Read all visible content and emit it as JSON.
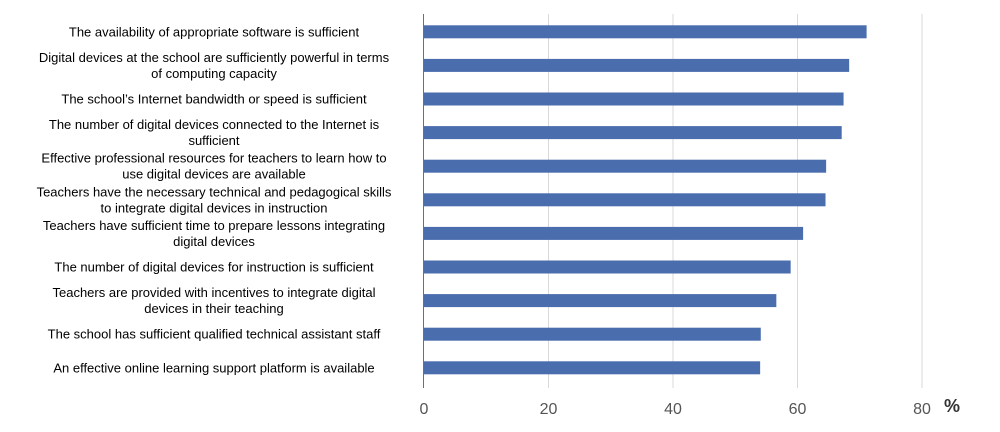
{
  "chart_data": {
    "type": "bar",
    "orientation": "horizontal",
    "categories": [
      [
        "The availability of appropriate software is sufficient"
      ],
      [
        "Digital devices at the school are sufficiently powerful in terms",
        "of computing capacity"
      ],
      [
        "The school’s Internet bandwidth or speed is sufficient"
      ],
      [
        "The number of digital devices connected to the Internet is",
        "sufficient"
      ],
      [
        "Effective professional resources for teachers to learn how to",
        "use digital devices are available"
      ],
      [
        "Teachers have the necessary technical and pedagogical skills",
        "to integrate digital devices in instruction"
      ],
      [
        "Teachers have sufficient time to prepare lessons integrating",
        "digital devices"
      ],
      [
        "The number of digital devices for instruction is sufficient"
      ],
      [
        "Teachers are provided with incentives to integrate digital",
        "devices in their teaching"
      ],
      [
        "The school has sufficient qualified technical assistant staff"
      ],
      [
        "An effective online learning support platform is available"
      ]
    ],
    "values": [
      71.1,
      68.3,
      67.4,
      67.1,
      64.6,
      64.5,
      60.9,
      58.9,
      56.6,
      54.1,
      54.0
    ],
    "xlim": [
      0,
      80
    ],
    "xticks": [
      0,
      20,
      40,
      60,
      80
    ],
    "xlabel": "%",
    "bar_color": "#4A6DAE",
    "grid": true
  }
}
